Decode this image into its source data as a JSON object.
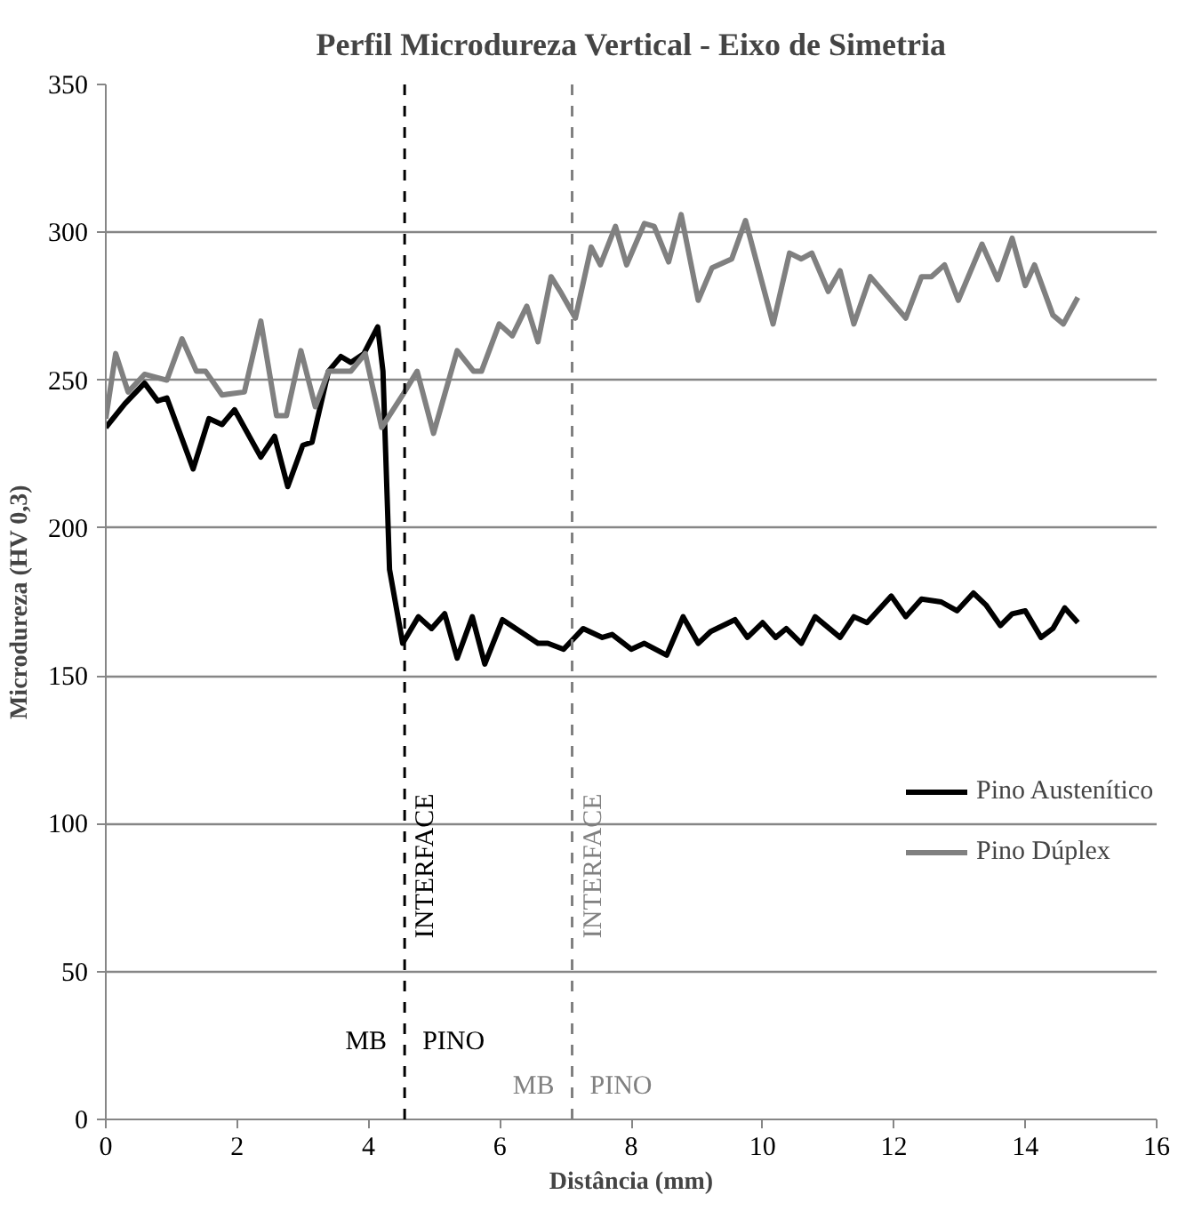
{
  "chart_data": {
    "type": "line",
    "title": "Perfil Microdureza Vertical - Eixo de Simetria",
    "xlabel": "Distância (mm)",
    "ylabel": "Microdureza (HV 0,3)",
    "xlim": [
      0,
      16
    ],
    "xticks": [
      0,
      2,
      4,
      6,
      8,
      10,
      12,
      14,
      16
    ],
    "ylim": [
      0,
      350
    ],
    "yticks": [
      0,
      50,
      100,
      150,
      200,
      250,
      300,
      350
    ],
    "grid": "y",
    "legend": "right",
    "marker": "none",
    "line_style": "solid",
    "series": [
      {
        "name": "Pino Austenítico",
        "color": "#000000",
        "x": [
          0,
          0.29,
          0.59,
          0.79,
          0.93,
          1.33,
          1.57,
          1.77,
          1.96,
          2.36,
          2.57,
          2.77,
          3.0,
          3.14,
          3.39,
          3.58,
          3.73,
          3.93,
          4.14,
          4.22,
          4.32,
          4.52,
          4.76,
          4.96,
          5.16,
          5.35,
          5.58,
          5.77,
          6.04,
          6.58,
          6.73,
          6.97,
          7.27,
          7.56,
          7.71,
          8.0,
          8.2,
          8.54,
          8.79,
          9.02,
          9.21,
          9.58,
          9.77,
          10.0,
          10.2,
          10.36,
          10.59,
          10.8,
          11.18,
          11.39,
          11.59,
          11.96,
          12.18,
          12.42,
          12.72,
          12.96,
          13.21,
          13.4,
          13.62,
          13.8,
          14.0,
          14.24,
          14.42,
          14.6,
          14.8
        ],
        "values": [
          234,
          242,
          249,
          243,
          244,
          220,
          237,
          235,
          240,
          224,
          231,
          214,
          228,
          229,
          253,
          258,
          256,
          259,
          268,
          253,
          186,
          161,
          170,
          166,
          171,
          156,
          170,
          154,
          169,
          161,
          161,
          159,
          166,
          163,
          164,
          159,
          161,
          157,
          170,
          161,
          165,
          169,
          163,
          168,
          163,
          166,
          161,
          170,
          163,
          170,
          168,
          177,
          170,
          176,
          175,
          172,
          178,
          174,
          167,
          171,
          172,
          163,
          166,
          173,
          168
        ]
      },
      {
        "name": "Pino Dúplex",
        "color": "#808080",
        "x": [
          0,
          0.15,
          0.34,
          0.59,
          0.93,
          1.16,
          1.38,
          1.52,
          1.77,
          2.11,
          2.36,
          2.6,
          2.75,
          2.97,
          3.19,
          3.39,
          3.73,
          3.95,
          4.2,
          4.52,
          4.74,
          4.99,
          5.35,
          5.6,
          5.72,
          5.99,
          6.19,
          6.41,
          6.58,
          6.78,
          6.92,
          7.15,
          7.39,
          7.53,
          7.76,
          7.93,
          8.2,
          8.35,
          8.57,
          8.76,
          9.02,
          9.23,
          9.53,
          9.74,
          10.16,
          10.41,
          10.59,
          10.75,
          11.0,
          11.18,
          11.39,
          11.64,
          12.18,
          12.42,
          12.57,
          12.77,
          12.98,
          13.34,
          13.58,
          13.8,
          14.0,
          14.14,
          14.42,
          14.58,
          14.8
        ],
        "values": [
          237,
          259,
          246,
          252,
          250,
          264,
          253,
          253,
          245,
          246,
          270,
          238,
          238,
          260,
          241,
          253,
          253,
          259,
          234,
          245,
          253,
          232,
          260,
          253,
          253,
          269,
          265,
          275,
          263,
          285,
          280,
          271,
          295,
          289,
          302,
          289,
          303,
          302,
          290,
          306,
          277,
          288,
          291,
          304,
          269,
          293,
          291,
          293,
          280,
          287,
          269,
          285,
          271,
          285,
          285,
          289,
          277,
          296,
          284,
          298,
          282,
          289,
          272,
          269,
          278
        ]
      }
    ],
    "ref_lines": [
      {
        "axis": "x",
        "value": 4.55,
        "label": "INTERFACE",
        "color": "#000000",
        "line_style": "dashed"
      },
      {
        "axis": "x",
        "value": 7.1,
        "label": "INTERFACE",
        "color": "#808080",
        "line_style": "dashed"
      }
    ],
    "annotations": [
      "MB",
      "PINO",
      "MB",
      "PINO"
    ]
  }
}
